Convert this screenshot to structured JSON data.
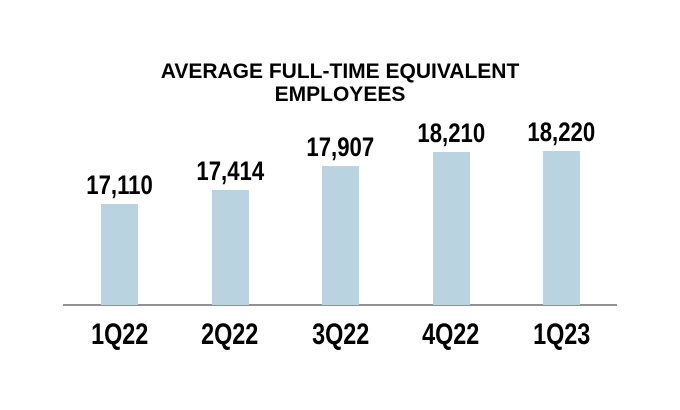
{
  "chart_data": {
    "type": "bar",
    "title": "AVERAGE FULL-TIME EQUIVALENT EMPLOYEES",
    "categories": [
      "1Q22",
      "2Q22",
      "3Q22",
      "4Q22",
      "1Q23"
    ],
    "values": [
      17110,
      17414,
      17907,
      18210,
      18220
    ],
    "value_labels": [
      "17,110",
      "17,414",
      "17,907",
      "18,210",
      "18,220"
    ],
    "xlabel": "",
    "ylabel": "",
    "ylim": [
      15000,
      18500
    ],
    "grid": false,
    "legend": false,
    "data_labels_position": "above-bars",
    "bar_color": "#B9D3E1",
    "axis_line_color": "#919191",
    "text_color": "#000000",
    "background_color": "#FFFFFF"
  }
}
